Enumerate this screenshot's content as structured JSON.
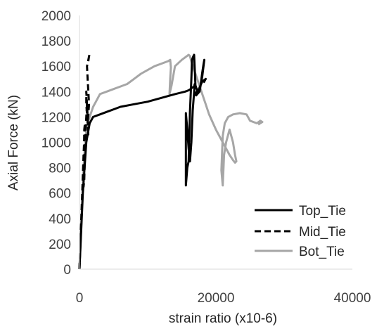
{
  "chart_data": {
    "type": "line",
    "xlabel": "strain ratio (x10-6)",
    "ylabel": "Axial Force (kN)",
    "xlim": [
      0,
      40000
    ],
    "ylim": [
      0,
      2000
    ],
    "x_ticks": [
      0,
      20000,
      40000
    ],
    "y_ticks": [
      0,
      200,
      400,
      600,
      800,
      1000,
      1200,
      1400,
      1600,
      1800,
      2000
    ],
    "grid": false,
    "legend": "bottom-right",
    "series": [
      {
        "name": "Top_Tie",
        "color": "#000000",
        "dash": "solid",
        "x": [
          0,
          500,
          1000,
          1500,
          2000,
          3000,
          4000,
          5000,
          6000,
          8000,
          10000,
          12000,
          14000,
          15500,
          16000,
          16300,
          16500,
          16800,
          16900,
          16600,
          16400,
          16200,
          16000,
          15800,
          15600,
          15600,
          15800,
          16000,
          16200,
          16400,
          16500,
          16700,
          16800,
          17000,
          17300,
          17700,
          18000,
          18200,
          18300,
          18000,
          17600,
          17100,
          16900,
          17500,
          18000,
          18500,
          18300,
          18200
        ],
        "y": [
          0,
          600,
          1000,
          1150,
          1200,
          1220,
          1240,
          1260,
          1280,
          1300,
          1320,
          1350,
          1380,
          1400,
          1410,
          1420,
          1430,
          1440,
          1460,
          1250,
          1000,
          850,
          950,
          1100,
          1230,
          660,
          800,
          850,
          1240,
          1500,
          1650,
          1680,
          1690,
          1450,
          1400,
          1430,
          1550,
          1620,
          1650,
          1520,
          1400,
          1370,
          1380,
          1420,
          1480,
          1500,
          1480,
          1470
        ]
      },
      {
        "name": "Mid_Tie",
        "color": "#000000",
        "dash": "dashed",
        "x": [
          0,
          200,
          400,
          600,
          800,
          700,
          600,
          700,
          900,
          1100,
          1200,
          1300,
          1200,
          1000,
          1000,
          1200,
          1400,
          1200,
          1100,
          1300,
          1450,
          1350,
          1300
        ],
        "y": [
          0,
          300,
          600,
          900,
          1150,
          1100,
          650,
          700,
          1100,
          1300,
          1200,
          1050,
          1200,
          1400,
          1300,
          1150,
          1300,
          1500,
          1600,
          1650,
          1690,
          1660,
          1640
        ]
      },
      {
        "name": "Bot_Tie",
        "color": "#a6a6a6",
        "dash": "solid",
        "x": [
          0,
          300,
          600,
          900,
          1200,
          1500,
          2000,
          2500,
          3000,
          4000,
          5000,
          6000,
          7000,
          8000,
          9000,
          10000,
          11000,
          12000,
          13000,
          13300,
          13400,
          13300,
          13200,
          13500,
          14000,
          15000,
          15500,
          16000,
          16200,
          16500,
          17000,
          17500,
          18000,
          18500,
          19000,
          20000,
          21000,
          22000,
          22500,
          22800,
          23000,
          22800,
          22500,
          22000,
          21500,
          21200,
          21000,
          20800,
          21000,
          21300,
          21800,
          22500,
          23500,
          24500,
          25000,
          25500,
          26000,
          26500,
          26800,
          26500,
          26200
        ],
        "y": [
          0,
          400,
          800,
          1050,
          1150,
          1200,
          1280,
          1330,
          1380,
          1400,
          1420,
          1440,
          1460,
          1500,
          1540,
          1570,
          1600,
          1620,
          1640,
          1650,
          1590,
          1500,
          1380,
          1450,
          1600,
          1650,
          1670,
          1690,
          1680,
          1620,
          1540,
          1460,
          1380,
          1300,
          1220,
          1100,
          1000,
          900,
          860,
          840,
          850,
          900,
          1000,
          1100,
          1000,
          900,
          660,
          780,
          1050,
          1150,
          1200,
          1220,
          1230,
          1220,
          1170,
          1160,
          1150,
          1170,
          1160,
          1150,
          1140
        ]
      }
    ]
  }
}
